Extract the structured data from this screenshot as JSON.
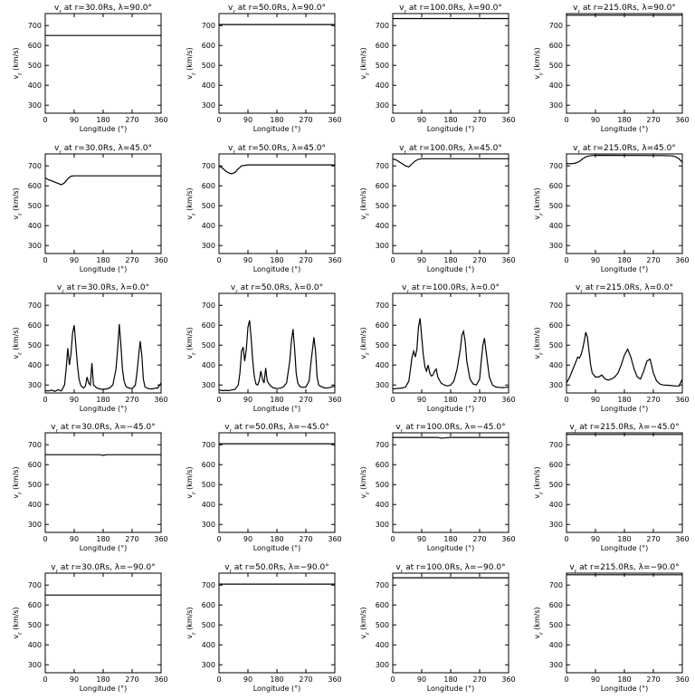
{
  "rows": [
    {
      "lat_label": "λ=90.0°"
    },
    {
      "lat_label": "λ=45.0°"
    },
    {
      "lat_label": "λ=0.0°"
    },
    {
      "lat_label": "λ=−45.0°"
    },
    {
      "lat_label": "λ=−90.0°"
    }
  ],
  "cols": [
    {
      "r_label": "r=30.0Rs"
    },
    {
      "r_label": "r=50.0Rs"
    },
    {
      "r_label": "r=100.0Rs"
    },
    {
      "r_label": "r=215.0Rs"
    }
  ],
  "title_prefix": "v",
  "title_sub": "r",
  "title_at": "at",
  "xlabel": "Longitude (°)",
  "ylabel": "v (km/s)",
  "ylabel_main": "v",
  "ylabel_sub": "r",
  "ylabel_units": "(km/s)",
  "xticks": [
    0,
    90,
    180,
    270,
    360
  ],
  "yticks": [
    300,
    400,
    500,
    600,
    700
  ],
  "chart_data": [
    {
      "type": "line",
      "row": 0,
      "col": 0,
      "title": "vr at r=30.0Rs, λ=90.0°",
      "xlabel": "Longitude (°)",
      "ylabel": "vr (km/s)",
      "xlim": [
        0,
        360
      ],
      "ylim": [
        260,
        760
      ],
      "x": [
        0,
        360
      ],
      "y": [
        650,
        650
      ]
    },
    {
      "type": "line",
      "row": 0,
      "col": 1,
      "title": "vr at r=50.0Rs, λ=90.0°",
      "xlabel": "Longitude (°)",
      "ylabel": "vr (km/s)",
      "xlim": [
        0,
        360
      ],
      "ylim": [
        260,
        760
      ],
      "x": [
        0,
        360
      ],
      "y": [
        705,
        705
      ]
    },
    {
      "type": "line",
      "row": 0,
      "col": 2,
      "title": "vr at r=100.0Rs, λ=90.0°",
      "xlabel": "Longitude (°)",
      "ylabel": "vr (km/s)",
      "xlim": [
        0,
        360
      ],
      "ylim": [
        260,
        760
      ],
      "x": [
        0,
        360
      ],
      "y": [
        735,
        735
      ]
    },
    {
      "type": "line",
      "row": 0,
      "col": 3,
      "title": "vr at r=215.0Rs, λ=90.0°",
      "xlabel": "Longitude (°)",
      "ylabel": "vr (km/s)",
      "xlim": [
        0,
        360
      ],
      "ylim": [
        260,
        760
      ],
      "x": [
        0,
        360
      ],
      "y": [
        752,
        752
      ]
    },
    {
      "type": "line",
      "row": 1,
      "col": 0,
      "title": "vr at r=30.0Rs, λ=45.0°",
      "xlabel": "Longitude (°)",
      "ylabel": "vr (km/s)",
      "xlim": [
        0,
        360
      ],
      "ylim": [
        260,
        760
      ],
      "x": [
        0,
        10,
        20,
        30,
        40,
        50,
        60,
        70,
        80,
        90,
        120,
        360
      ],
      "y": [
        640,
        630,
        625,
        618,
        612,
        605,
        615,
        635,
        648,
        650,
        650,
        650
      ]
    },
    {
      "type": "line",
      "row": 1,
      "col": 1,
      "title": "vr at r=50.0Rs, λ=45.0°",
      "xlabel": "Longitude (°)",
      "ylabel": "vr (km/s)",
      "xlim": [
        0,
        360
      ],
      "ylim": [
        260,
        760
      ],
      "x": [
        0,
        10,
        20,
        30,
        40,
        50,
        60,
        70,
        90,
        360
      ],
      "y": [
        700,
        690,
        675,
        665,
        660,
        668,
        685,
        700,
        705,
        705
      ]
    },
    {
      "type": "line",
      "row": 1,
      "col": 2,
      "title": "vr at r=100.0Rs, λ=45.0°",
      "xlabel": "Longitude (°)",
      "ylabel": "vr (km/s)",
      "xlim": [
        0,
        360
      ],
      "ylim": [
        260,
        760
      ],
      "x": [
        0,
        10,
        20,
        30,
        40,
        50,
        60,
        70,
        80,
        90,
        360
      ],
      "y": [
        735,
        730,
        720,
        710,
        700,
        695,
        710,
        725,
        733,
        736,
        736
      ]
    },
    {
      "type": "line",
      "row": 1,
      "col": 3,
      "title": "vr at r=215.0Rs, λ=45.0°",
      "xlabel": "Longitude (°)",
      "ylabel": "vr (km/s)",
      "xlim": [
        0,
        360
      ],
      "ylim": [
        260,
        760
      ],
      "x": [
        0,
        10,
        20,
        30,
        40,
        50,
        60,
        70,
        80,
        90,
        300,
        330,
        340,
        350,
        360
      ],
      "y": [
        712,
        711,
        712,
        715,
        722,
        735,
        745,
        750,
        752,
        753,
        752,
        750,
        745,
        735,
        718
      ]
    },
    {
      "type": "line",
      "row": 2,
      "col": 0,
      "title": "vr at r=30.0Rs, λ=0.0°",
      "xlabel": "Longitude (°)",
      "ylabel": "vr (km/s)",
      "xlim": [
        0,
        360
      ],
      "ylim": [
        260,
        760
      ],
      "x": [
        0,
        10,
        20,
        30,
        40,
        50,
        60,
        65,
        70,
        75,
        80,
        85,
        90,
        95,
        100,
        105,
        110,
        115,
        120,
        125,
        130,
        135,
        140,
        145,
        150,
        160,
        170,
        180,
        190,
        200,
        210,
        220,
        225,
        230,
        235,
        240,
        245,
        250,
        255,
        260,
        270,
        280,
        285,
        290,
        295,
        300,
        305,
        310,
        320,
        330,
        340,
        350,
        355,
        360
      ],
      "y": [
        272,
        270,
        274,
        268,
        276,
        270,
        300,
        380,
        485,
        400,
        455,
        560,
        600,
        500,
        400,
        330,
        300,
        290,
        285,
        295,
        340,
        310,
        300,
        410,
        300,
        285,
        280,
        278,
        280,
        285,
        300,
        380,
        480,
        605,
        500,
        380,
        320,
        295,
        288,
        285,
        282,
        300,
        360,
        440,
        520,
        450,
        330,
        290,
        282,
        280,
        283,
        285,
        298,
        310
      ]
    },
    {
      "type": "line",
      "row": 2,
      "col": 1,
      "title": "vr at r=50.0Rs, λ=0.0°",
      "xlabel": "Longitude (°)",
      "ylabel": "vr (km/s)",
      "xlim": [
        0,
        360
      ],
      "ylim": [
        260,
        760
      ],
      "x": [
        0,
        10,
        20,
        30,
        40,
        50,
        60,
        65,
        70,
        75,
        80,
        85,
        90,
        95,
        100,
        105,
        110,
        115,
        120,
        125,
        130,
        135,
        140,
        145,
        150,
        160,
        170,
        180,
        190,
        200,
        210,
        220,
        225,
        230,
        235,
        240,
        245,
        250,
        255,
        260,
        270,
        280,
        285,
        290,
        295,
        300,
        305,
        310,
        320,
        330,
        340,
        350,
        360
      ],
      "y": [
        275,
        272,
        273,
        272,
        275,
        278,
        300,
        360,
        470,
        490,
        420,
        480,
        590,
        625,
        530,
        420,
        340,
        305,
        300,
        320,
        370,
        330,
        310,
        385,
        320,
        295,
        285,
        282,
        284,
        290,
        310,
        420,
        520,
        580,
        480,
        360,
        310,
        295,
        290,
        288,
        290,
        320,
        400,
        470,
        540,
        470,
        340,
        300,
        290,
        285,
        286,
        290,
        295
      ]
    },
    {
      "type": "line",
      "row": 2,
      "col": 2,
      "title": "vr at r=100.0Rs, λ=0.0°",
      "xlabel": "Longitude (°)",
      "ylabel": "vr (km/s)",
      "xlim": [
        0,
        360
      ],
      "ylim": [
        260,
        760
      ],
      "x": [
        0,
        10,
        20,
        30,
        40,
        50,
        55,
        60,
        65,
        70,
        75,
        80,
        85,
        90,
        95,
        100,
        105,
        110,
        115,
        120,
        125,
        130,
        135,
        140,
        150,
        160,
        170,
        180,
        190,
        200,
        210,
        215,
        220,
        225,
        230,
        240,
        250,
        260,
        270,
        275,
        280,
        285,
        290,
        300,
        310,
        320,
        330,
        340,
        350,
        360
      ],
      "y": [
        280,
        282,
        283,
        285,
        290,
        320,
        380,
        440,
        470,
        440,
        480,
        590,
        635,
        540,
        450,
        390,
        370,
        400,
        360,
        345,
        350,
        370,
        380,
        340,
        310,
        300,
        295,
        300,
        320,
        380,
        480,
        550,
        570,
        520,
        420,
        330,
        305,
        300,
        330,
        420,
        500,
        535,
        470,
        340,
        300,
        290,
        288,
        287,
        288,
        290
      ]
    },
    {
      "type": "line",
      "row": 2,
      "col": 3,
      "title": "vr at r=215.0Rs, λ=0.0°",
      "xlabel": "Longitude (°)",
      "ylabel": "vr (km/s)",
      "xlim": [
        0,
        360
      ],
      "ylim": [
        260,
        760
      ],
      "x": [
        0,
        10,
        20,
        30,
        35,
        40,
        45,
        50,
        55,
        60,
        65,
        70,
        75,
        80,
        90,
        100,
        110,
        120,
        130,
        140,
        150,
        160,
        170,
        180,
        190,
        200,
        210,
        220,
        230,
        240,
        250,
        260,
        270,
        280,
        290,
        300,
        320,
        340,
        350,
        360
      ],
      "y": [
        310,
        340,
        380,
        420,
        440,
        435,
        450,
        480,
        520,
        565,
        540,
        470,
        400,
        360,
        340,
        340,
        350,
        330,
        325,
        330,
        340,
        360,
        400,
        450,
        480,
        440,
        380,
        340,
        330,
        370,
        420,
        430,
        360,
        320,
        305,
        300,
        298,
        295,
        295,
        330
      ]
    },
    {
      "type": "line",
      "row": 3,
      "col": 0,
      "title": "vr at r=30.0Rs, λ=−45.0°",
      "xlabel": "Longitude (°)",
      "ylabel": "vr (km/s)",
      "xlim": [
        0,
        360
      ],
      "ylim": [
        260,
        760
      ],
      "x": [
        0,
        170,
        180,
        190,
        360
      ],
      "y": [
        650,
        650,
        647,
        650,
        650
      ]
    },
    {
      "type": "line",
      "row": 3,
      "col": 1,
      "title": "vr at r=50.0Rs, λ=−45.0°",
      "xlabel": "Longitude (°)",
      "ylabel": "vr (km/s)",
      "xlim": [
        0,
        360
      ],
      "ylim": [
        260,
        760
      ],
      "x": [
        0,
        360
      ],
      "y": [
        705,
        705
      ]
    },
    {
      "type": "line",
      "row": 3,
      "col": 2,
      "title": "vr at r=100.0Rs, λ=−45.0°",
      "xlabel": "Longitude (°)",
      "ylabel": "vr (km/s)",
      "xlim": [
        0,
        360
      ],
      "ylim": [
        260,
        760
      ],
      "x": [
        0,
        140,
        150,
        160,
        170,
        180,
        360
      ],
      "y": [
        737,
        737,
        733,
        734,
        736,
        737,
        737
      ]
    },
    {
      "type": "line",
      "row": 3,
      "col": 3,
      "title": "vr at r=215.0Rs, λ=−45.0°",
      "xlabel": "Longitude (°)",
      "ylabel": "vr (km/s)",
      "xlim": [
        0,
        360
      ],
      "ylim": [
        260,
        760
      ],
      "x": [
        0,
        360
      ],
      "y": [
        752,
        752
      ]
    },
    {
      "type": "line",
      "row": 4,
      "col": 0,
      "title": "vr at r=30.0Rs, λ=−90.0°",
      "xlabel": "Longitude (°)",
      "ylabel": "vr (km/s)",
      "xlim": [
        0,
        360
      ],
      "ylim": [
        260,
        760
      ],
      "x": [
        0,
        360
      ],
      "y": [
        650,
        650
      ]
    },
    {
      "type": "line",
      "row": 4,
      "col": 1,
      "title": "vr at r=50.0Rs, λ=−90.0°",
      "xlabel": "Longitude (°)",
      "ylabel": "vr (km/s)",
      "xlim": [
        0,
        360
      ],
      "ylim": [
        260,
        760
      ],
      "x": [
        0,
        360
      ],
      "y": [
        705,
        705
      ]
    },
    {
      "type": "line",
      "row": 4,
      "col": 2,
      "title": "vr at r=100.0Rs, λ=−90.0°",
      "xlabel": "Longitude (°)",
      "ylabel": "vr (km/s)",
      "xlim": [
        0,
        360
      ],
      "ylim": [
        260,
        760
      ],
      "x": [
        0,
        360
      ],
      "y": [
        737,
        737
      ]
    },
    {
      "type": "line",
      "row": 4,
      "col": 3,
      "title": "vr at r=215.0Rs, λ=−90.0°",
      "xlabel": "Longitude (°)",
      "ylabel": "vr (km/s)",
      "xlim": [
        0,
        360
      ],
      "ylim": [
        260,
        760
      ],
      "x": [
        0,
        360
      ],
      "y": [
        752,
        752
      ]
    }
  ]
}
